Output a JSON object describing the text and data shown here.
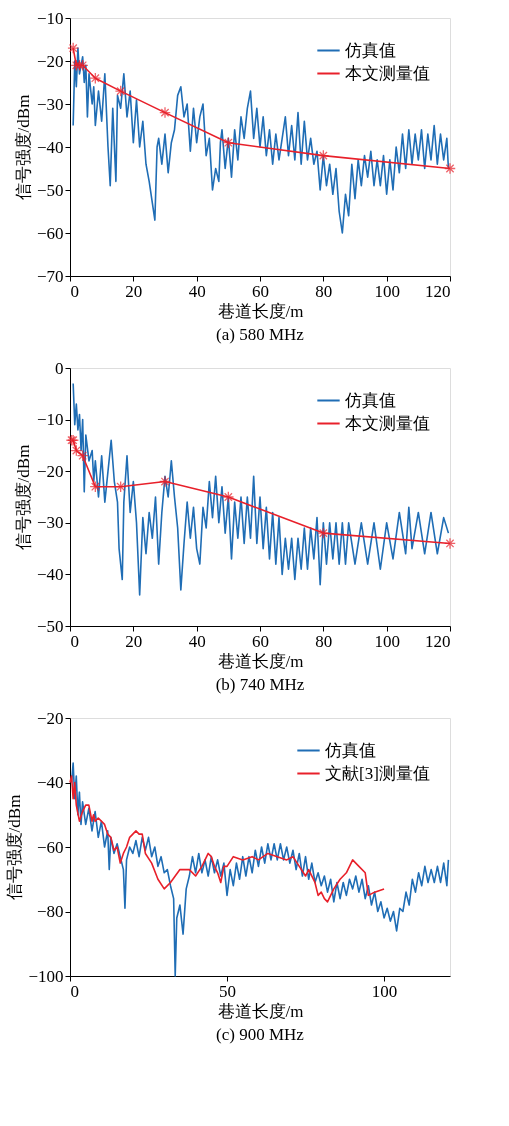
{
  "chart_data": [
    {
      "type": "line",
      "xlabel": "巷道长度/m",
      "ylabel": "信号强度/dBm",
      "annotations": [
        "(a)  580 MHz"
      ],
      "xlim": [
        0,
        120
      ],
      "ylim": [
        -70,
        -10
      ],
      "xticks": [
        0,
        20,
        40,
        60,
        80,
        100,
        120
      ],
      "yticks": [
        -70,
        -60,
        -50,
        -40,
        -30,
        -20,
        -10
      ],
      "grid": false,
      "legend": "top right",
      "series": [
        {
          "name": "仿真值",
          "color": "#1f6db5",
          "marker": "none",
          "x": [
            1,
            1.5,
            2,
            2.5,
            3,
            4,
            4.5,
            5,
            5.5,
            6,
            7,
            7.5,
            8,
            9,
            10,
            11,
            12,
            12.7,
            13.5,
            14.5,
            15,
            16,
            17,
            18,
            19,
            20,
            21,
            22,
            23,
            24,
            25,
            26,
            26.8,
            27.5,
            28,
            29,
            30,
            31,
            32,
            33,
            34,
            35,
            36,
            37,
            38,
            39,
            40,
            41,
            42,
            43,
            44,
            45,
            46,
            47,
            47.5,
            48,
            49,
            50,
            51,
            52,
            53,
            54,
            55,
            56,
            57,
            58,
            59,
            60,
            61,
            62,
            63,
            64,
            65,
            66,
            67,
            68,
            69,
            70,
            71,
            72,
            73,
            74,
            75,
            76,
            77,
            78,
            79,
            80,
            81,
            82,
            83,
            84,
            85,
            86,
            87,
            88,
            89,
            90,
            91,
            92,
            93,
            94,
            95,
            96,
            97,
            98,
            99,
            100,
            101,
            102,
            103,
            104,
            105,
            106,
            107,
            108,
            109,
            110,
            111,
            112,
            113,
            114,
            115,
            116,
            117,
            118,
            119,
            119.5
          ],
          "values": [
            -35,
            -20,
            -26,
            -17,
            -23,
            -19,
            -25,
            -21,
            -33,
            -23,
            -30,
            -26,
            -35,
            -27,
            -34,
            -23,
            -40,
            -49,
            -31,
            -48,
            -28,
            -31,
            -23,
            -33,
            -27,
            -39,
            -29,
            -40,
            -34,
            -44,
            -48,
            -53,
            -57,
            -40,
            -38,
            -44,
            -37,
            -46,
            -39,
            -36,
            -28,
            -26,
            -33,
            -30,
            -41,
            -31,
            -39,
            -33,
            -30,
            -42,
            -38,
            -50,
            -45,
            -48,
            -39,
            -36,
            -45,
            -38,
            -47,
            -36,
            -43,
            -33,
            -38,
            -31,
            -27,
            -38,
            -31,
            -40,
            -33,
            -42,
            -36,
            -44,
            -37,
            -43,
            -38,
            -33,
            -42,
            -35,
            -43,
            -32,
            -44,
            -34,
            -43,
            -38,
            -44,
            -41,
            -50,
            -42,
            -49,
            -44,
            -51,
            -45,
            -55,
            -60,
            -51,
            -56,
            -44,
            -52,
            -43,
            -49,
            -42,
            -47,
            -41,
            -49,
            -43,
            -49,
            -42,
            -51,
            -43,
            -50,
            -40,
            -46,
            -37,
            -45,
            -36,
            -44,
            -37,
            -43,
            -36,
            -45,
            -37,
            -43,
            -35,
            -44,
            -37,
            -43,
            -38,
            -45
          ]
        },
        {
          "name": "本文测量值",
          "color": "#e8202a",
          "marker": "cross",
          "x": [
            1,
            2,
            3,
            4,
            8,
            16,
            30,
            50,
            80,
            120
          ],
          "values": [
            -17,
            -21,
            -21,
            -21,
            -24,
            -27,
            -32,
            -39,
            -42,
            -45
          ]
        }
      ]
    },
    {
      "type": "line",
      "xlabel": "巷道长度/m",
      "ylabel": "信号强度/dBm",
      "annotations": [
        "(b)  740 MHz"
      ],
      "xlim": [
        0,
        120
      ],
      "ylim": [
        -50,
        0
      ],
      "xticks": [
        0,
        20,
        40,
        60,
        80,
        100,
        120
      ],
      "yticks": [
        -50,
        -40,
        -30,
        -20,
        -10,
        0
      ],
      "grid": false,
      "legend": "top right",
      "series": [
        {
          "name": "仿真值",
          "color": "#1f6db5",
          "marker": "none",
          "x": [
            1,
            1.5,
            2,
            2.5,
            3,
            3.5,
            4,
            4.5,
            5,
            6,
            7,
            7.5,
            8,
            9,
            10,
            11,
            12,
            13,
            14,
            15,
            15.5,
            16.5,
            17,
            18,
            19,
            20,
            21,
            22,
            23,
            24,
            25,
            26,
            27,
            28,
            29,
            30,
            31,
            32,
            33,
            34,
            35,
            36,
            37,
            38,
            39,
            40,
            41,
            42,
            43,
            44,
            45,
            46,
            47,
            48,
            49,
            50,
            51,
            52,
            53,
            54,
            55,
            56,
            57,
            58,
            59,
            60,
            61,
            62,
            63,
            64,
            65,
            66,
            67,
            68,
            69,
            70,
            71,
            72,
            73,
            74,
            75,
            76,
            77,
            78,
            79,
            80,
            81,
            82,
            83,
            84,
            85,
            86,
            87,
            88,
            90,
            92,
            94,
            96,
            98,
            100,
            102,
            104,
            106,
            107,
            108,
            110,
            112,
            114,
            116,
            118,
            119.5
          ],
          "values": [
            -3,
            -11,
            -7,
            -12,
            -9,
            -16,
            -10,
            -24,
            -13,
            -18,
            -16,
            -22,
            -18,
            -25,
            -17,
            -26,
            -20,
            -14,
            -22,
            -26,
            -35,
            -41,
            -26,
            -17,
            -28,
            -22,
            -30,
            -44,
            -29,
            -36,
            -28,
            -33,
            -25,
            -38,
            -28,
            -21,
            -25,
            -18,
            -25,
            -31,
            -43,
            -34,
            -26,
            -33,
            -27,
            -35,
            -38,
            -27,
            -31,
            -22,
            -29,
            -21,
            -30,
            -23,
            -32,
            -25,
            -37,
            -26,
            -33,
            -25,
            -34,
            -25,
            -33,
            -21,
            -34,
            -25,
            -35,
            -27,
            -37,
            -28,
            -38,
            -29,
            -40,
            -33,
            -39,
            -33,
            -41,
            -33,
            -39,
            -31,
            -39,
            -31,
            -37,
            -29,
            -42,
            -30,
            -38,
            -30,
            -37,
            -30,
            -38,
            -30,
            -38,
            -30,
            -38,
            -30,
            -38,
            -30,
            -39,
            -30,
            -37,
            -28,
            -36,
            -27,
            -35,
            -28,
            -36,
            -28,
            -36,
            -29,
            -32
          ]
        },
        {
          "name": "本文测量值",
          "color": "#e8202a",
          "marker": "cross",
          "x": [
            0.5,
            1,
            2,
            4,
            8,
            16,
            30,
            50,
            80,
            120
          ],
          "values": [
            -14,
            -14,
            -16,
            -17,
            -23,
            -23,
            -22,
            -25,
            -32,
            -34
          ]
        }
      ]
    },
    {
      "type": "line",
      "xlabel": "巷道长度/m",
      "ylabel": "信号强度/dBm",
      "annotations": [
        "(c)  900 MHz"
      ],
      "xlim": [
        0,
        121
      ],
      "ylim": [
        -100,
        -20
      ],
      "xticks": [
        0,
        50,
        100
      ],
      "yticks": [
        -100,
        -80,
        -60,
        -40,
        -20
      ],
      "grid": false,
      "legend": "top right",
      "series": [
        {
          "name": "仿真值",
          "color": "#1f6db5",
          "marker": "none",
          "x": [
            0.5,
            1,
            1.5,
            2,
            2.5,
            3,
            3.5,
            4,
            5,
            6,
            7,
            8,
            9,
            10,
            11,
            12,
            12.5,
            13,
            14,
            15,
            16,
            17,
            17.5,
            18,
            19,
            20,
            21,
            22,
            23,
            24,
            25,
            26,
            27,
            28,
            29,
            30,
            31,
            32,
            33,
            33.5,
            34,
            35,
            36,
            37,
            38,
            39,
            40,
            41,
            42,
            43,
            44,
            45,
            46,
            47,
            48,
            49,
            50,
            51,
            52,
            53,
            54,
            55,
            56,
            57,
            58,
            59,
            60,
            61,
            62,
            63,
            64,
            65,
            66,
            67,
            68,
            69,
            70,
            71,
            72,
            73,
            74,
            75,
            76,
            77,
            78,
            79,
            80,
            81,
            82,
            83,
            84,
            85,
            86,
            87,
            88,
            89,
            90,
            91,
            92,
            93,
            94,
            95,
            96,
            97,
            98,
            99,
            100,
            101,
            102,
            103,
            104,
            105,
            106,
            107,
            108,
            109,
            110,
            111,
            112,
            113,
            114,
            115,
            116,
            117,
            118,
            119,
            120,
            120.5
          ],
          "values": [
            -40,
            -34,
            -45,
            -38,
            -50,
            -43,
            -53,
            -46,
            -53,
            -48,
            -55,
            -49,
            -57,
            -52,
            -60,
            -55,
            -67,
            -57,
            -62,
            -59,
            -63,
            -67,
            -79,
            -64,
            -60,
            -62,
            -58,
            -63,
            -57,
            -61,
            -57,
            -63,
            -60,
            -66,
            -63,
            -68,
            -67,
            -72,
            -76,
            -100,
            -82,
            -78,
            -87,
            -73,
            -69,
            -63,
            -68,
            -62,
            -68,
            -64,
            -69,
            -63,
            -68,
            -64,
            -69,
            -65,
            -75,
            -67,
            -72,
            -65,
            -70,
            -63,
            -69,
            -63,
            -68,
            -61,
            -66,
            -60,
            -65,
            -59,
            -64,
            -59,
            -64,
            -59,
            -64,
            -60,
            -65,
            -61,
            -67,
            -62,
            -69,
            -63,
            -70,
            -65,
            -71,
            -68,
            -72,
            -69,
            -74,
            -70,
            -77,
            -71,
            -76,
            -71,
            -75,
            -70,
            -73,
            -69,
            -74,
            -70,
            -76,
            -72,
            -78,
            -74,
            -80,
            -77,
            -82,
            -79,
            -83,
            -80,
            -86,
            -79,
            -80,
            -74,
            -78,
            -70,
            -74,
            -68,
            -72,
            -66,
            -71,
            -67,
            -71,
            -66,
            -71,
            -65,
            -72,
            -64
          ]
        },
        {
          "name": "文献[3]测量值",
          "color": "#e8202a",
          "marker": "none",
          "x": [
            0,
            0.5,
            1,
            1.5,
            2,
            3,
            4,
            5,
            6,
            7,
            7.5,
            8,
            9,
            11,
            12,
            13,
            14,
            15,
            16,
            17,
            18,
            19,
            20,
            21,
            22,
            23,
            24,
            26,
            28,
            30,
            32,
            35,
            38,
            40,
            42,
            44,
            45,
            46,
            47,
            48,
            49,
            50,
            52,
            55,
            58,
            60,
            63,
            66,
            69,
            71,
            73,
            75,
            76,
            78,
            79,
            80,
            81,
            82,
            84,
            86,
            88,
            90,
            92,
            94,
            95,
            97,
            100
          ],
          "values": [
            -40,
            -38,
            -45,
            -40,
            -47,
            -52,
            -49,
            -47,
            -47,
            -52,
            -50,
            -52,
            -51,
            -53,
            -56,
            -57,
            -61,
            -60,
            -65,
            -62,
            -60,
            -57,
            -56,
            -55,
            -56,
            -56,
            -62,
            -65,
            -70,
            -73,
            -71,
            -67,
            -67,
            -69,
            -66,
            -62,
            -63,
            -66,
            -68,
            -71,
            -66,
            -66,
            -63,
            -64,
            -63,
            -64,
            -62,
            -63,
            -64,
            -63,
            -66,
            -69,
            -67,
            -71,
            -75,
            -74,
            -76,
            -77,
            -73,
            -70,
            -68,
            -64,
            -66,
            -68,
            -75,
            -74,
            -73
          ]
        }
      ]
    }
  ]
}
